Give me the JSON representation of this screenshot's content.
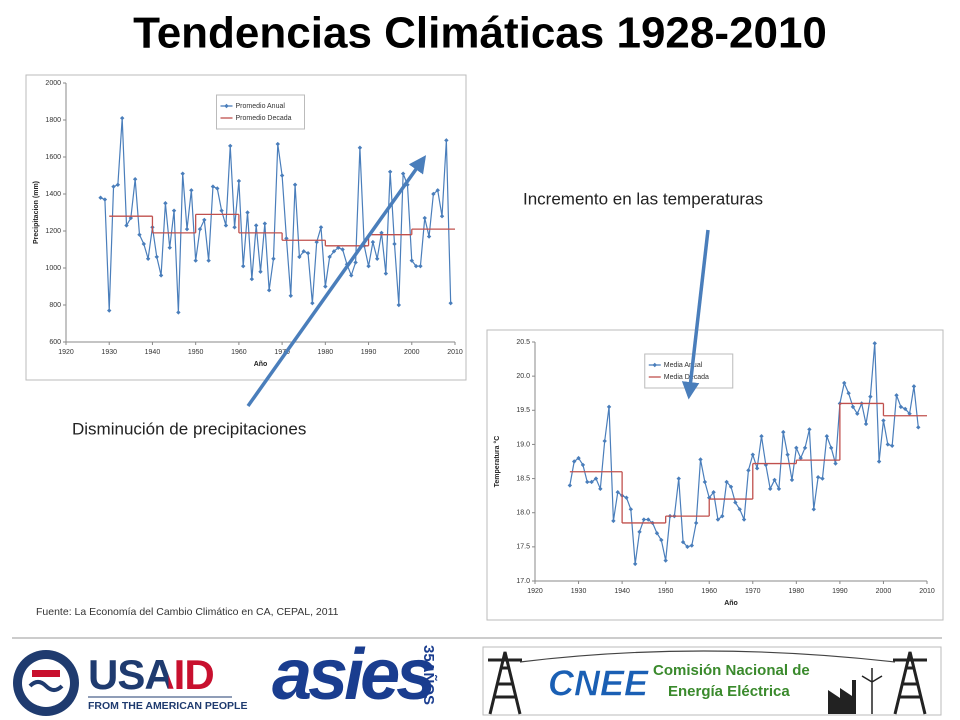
{
  "title": "Tendencias Climáticas 1928-2010",
  "annotations": [
    "Incremento en las temperaturas",
    "Disminución de precipitaciones"
  ],
  "source": "Fuente: La Economía del Cambio Climático en CA, CEPAL, 2011",
  "logos": {
    "usaid": "USAID",
    "usaid_tagline": "FROM THE AMERICAN PEOPLE",
    "asies": "asies",
    "asies_years": "35AÑOS",
    "cnee": "CNEE",
    "cnee_name_1": "Comisión Nacional de",
    "cnee_name_2": "Energía Eléctrica"
  },
  "chart_data": [
    {
      "type": "line",
      "xlabel": "Año",
      "ylabel": "Precipitacion (mm)",
      "xlim": [
        1920,
        2010
      ],
      "xticks": [
        1920,
        1930,
        1940,
        1950,
        1960,
        1970,
        1980,
        1990,
        2000,
        2010
      ],
      "ylim": [
        600,
        2000
      ],
      "yticks": [
        600,
        800,
        1000,
        1200,
        1400,
        1600,
        1800,
        2000
      ],
      "grid": false,
      "legend": "upper center",
      "series": [
        {
          "name": "Promedio Anual",
          "color": "#4a7ebb",
          "style": "line",
          "marker": "diamond",
          "x": [
            1928,
            1929,
            1930,
            1931,
            1932,
            1933,
            1934,
            1935,
            1936,
            1937,
            1938,
            1939,
            1940,
            1941,
            1942,
            1943,
            1944,
            1945,
            1946,
            1947,
            1948,
            1949,
            1950,
            1951,
            1952,
            1953,
            1954,
            1955,
            1956,
            1957,
            1958,
            1959,
            1960,
            1961,
            1962,
            1963,
            1964,
            1965,
            1966,
            1967,
            1968,
            1969,
            1970,
            1971,
            1972,
            1973,
            1974,
            1975,
            1976,
            1977,
            1978,
            1979,
            1980,
            1981,
            1982,
            1983,
            1984,
            1985,
            1986,
            1987,
            1988,
            1989,
            1990,
            1991,
            1992,
            1993,
            1994,
            1995,
            1996,
            1997,
            1998,
            1999,
            2000,
            2001,
            2002,
            2003,
            2004,
            2005,
            2006,
            2007,
            2008,
            2009
          ],
          "values": [
            1380,
            1370,
            770,
            1440,
            1450,
            1810,
            1230,
            1270,
            1480,
            1180,
            1130,
            1050,
            1220,
            1060,
            960,
            1350,
            1110,
            1310,
            760,
            1510,
            1210,
            1420,
            1040,
            1210,
            1260,
            1040,
            1440,
            1430,
            1310,
            1230,
            1660,
            1220,
            1470,
            1010,
            1300,
            940,
            1230,
            980,
            1240,
            880,
            1050,
            1670,
            1500,
            1160,
            850,
            1450,
            1060,
            1090,
            1080,
            810,
            1140,
            1220,
            900,
            1060,
            1090,
            1110,
            1100,
            1020,
            960,
            1030,
            1650,
            1120,
            1010,
            1140,
            1050,
            1190,
            970,
            1520,
            1130,
            800,
            1510,
            1450,
            1040,
            1010,
            1010,
            1270,
            1170,
            1400,
            1420,
            1280,
            1690,
            810
          ]
        },
        {
          "name": "Promedio Decada",
          "color": "#c0504d",
          "style": "step",
          "x": [
            1930,
            1940,
            1950,
            1960,
            1970,
            1980,
            1990,
            2000
          ],
          "values": [
            1280,
            1190,
            1290,
            1190,
            1150,
            1120,
            1180,
            1210
          ]
        }
      ]
    },
    {
      "type": "line",
      "xlabel": "Año",
      "ylabel": "Temperatura °C",
      "xlim": [
        1920,
        2010
      ],
      "xticks": [
        1920,
        1930,
        1940,
        1950,
        1960,
        1970,
        1980,
        1990,
        2000,
        2010
      ],
      "ylim": [
        17,
        20.5
      ],
      "yticks": [
        {
          "value": 17,
          "label": "17.0"
        },
        17.5,
        {
          "value": 18,
          "label": "18.0"
        },
        18.5,
        {
          "value": 19,
          "label": "19.0"
        },
        19.5,
        {
          "value": 20,
          "label": "20.0"
        },
        20.5
      ],
      "grid": false,
      "legend": "upper left",
      "series": [
        {
          "name": "Media Anual",
          "color": "#4a7ebb",
          "style": "line",
          "marker": "diamond",
          "x": [
            1928,
            1929,
            1930,
            1931,
            1932,
            1933,
            1934,
            1935,
            1936,
            1937,
            1938,
            1939,
            1940,
            1941,
            1942,
            1943,
            1944,
            1945,
            1946,
            1947,
            1948,
            1949,
            1950,
            1951,
            1952,
            1953,
            1954,
            1955,
            1956,
            1957,
            1958,
            1959,
            1960,
            1961,
            1962,
            1963,
            1964,
            1965,
            1966,
            1967,
            1968,
            1969,
            1970,
            1971,
            1972,
            1973,
            1974,
            1975,
            1976,
            1977,
            1978,
            1979,
            1980,
            1981,
            1982,
            1983,
            1984,
            1985,
            1986,
            1987,
            1988,
            1989,
            1990,
            1991,
            1992,
            1993,
            1994,
            1995,
            1996,
            1997,
            1998,
            1999,
            2000,
            2001,
            2002,
            2003,
            2004,
            2005,
            2006,
            2007,
            2008
          ],
          "values": [
            18.4,
            18.75,
            18.8,
            18.7,
            18.45,
            18.45,
            18.5,
            18.35,
            19.05,
            19.55,
            17.88,
            18.3,
            18.25,
            18.22,
            18.05,
            17.25,
            17.72,
            17.9,
            17.9,
            17.85,
            17.7,
            17.6,
            17.3,
            17.95,
            17.95,
            18.5,
            17.57,
            17.5,
            17.52,
            17.85,
            18.78,
            18.45,
            18.22,
            18.3,
            17.9,
            17.95,
            18.45,
            18.38,
            18.15,
            18.05,
            17.9,
            18.62,
            18.85,
            18.65,
            19.12,
            18.7,
            18.35,
            18.48,
            18.35,
            19.18,
            18.85,
            18.48,
            18.95,
            18.8,
            18.95,
            19.22,
            18.05,
            18.52,
            18.5,
            19.12,
            18.95,
            18.72,
            19.6,
            19.9,
            19.75,
            19.55,
            19.45,
            19.6,
            19.3,
            19.7,
            20.48,
            18.75,
            19.35,
            19.0,
            18.98,
            19.72,
            19.55,
            19.52,
            19.45,
            19.85,
            19.25
          ]
        },
        {
          "name": "Media Decada",
          "color": "#c0504d",
          "style": "step",
          "x": [
            1928,
            1940,
            1950,
            1960,
            1970,
            1980,
            1990,
            2000
          ],
          "values": [
            18.6,
            17.85,
            17.95,
            18.2,
            18.72,
            18.77,
            19.6,
            19.42
          ]
        }
      ]
    }
  ]
}
